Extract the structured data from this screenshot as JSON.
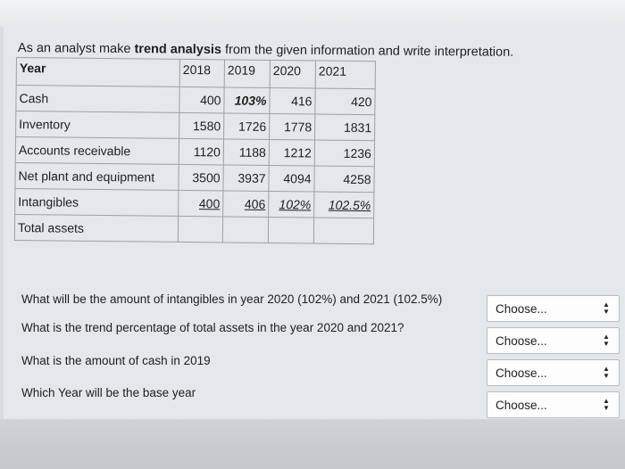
{
  "question": {
    "prefix": "As an analyst make ",
    "bold": "trend analysis",
    "suffix": " from the given information and write interpretation."
  },
  "table": {
    "header_label": "Year",
    "years": [
      "2018",
      "2019",
      "2020",
      "2021"
    ],
    "rows": [
      {
        "label": "Cash",
        "values": [
          "400",
          "103%",
          "416",
          "420"
        ]
      },
      {
        "label": "Inventory",
        "values": [
          "1580",
          "1726",
          "1778",
          "1831"
        ]
      },
      {
        "label": "Accounts receivable",
        "values": [
          "1120",
          "1188",
          "1212",
          "1236"
        ]
      },
      {
        "label": "Net plant and equipment",
        "values": [
          "3500",
          "3937",
          "4094",
          "4258"
        ]
      },
      {
        "label": "Intangibles",
        "values": [
          "400",
          "406",
          "102%",
          "102.5%"
        ]
      },
      {
        "label": "Total assets",
        "values": [
          "",
          "",
          "",
          ""
        ]
      }
    ]
  },
  "questions": [
    {
      "text": "What will be the amount of intangibles in year 2020 (102%) and 2021 (102.5%)",
      "select": "Choose..."
    },
    {
      "text": "What is the trend percentage of total assets in the year 2020 and 2021?",
      "select": "Choose..."
    },
    {
      "text": "What is the amount of cash in 2019",
      "select": "Choose..."
    },
    {
      "text": "Which Year will be the base year",
      "select": "Choose..."
    }
  ],
  "icons": {
    "select_arrow": "up-down-arrow-icon"
  }
}
